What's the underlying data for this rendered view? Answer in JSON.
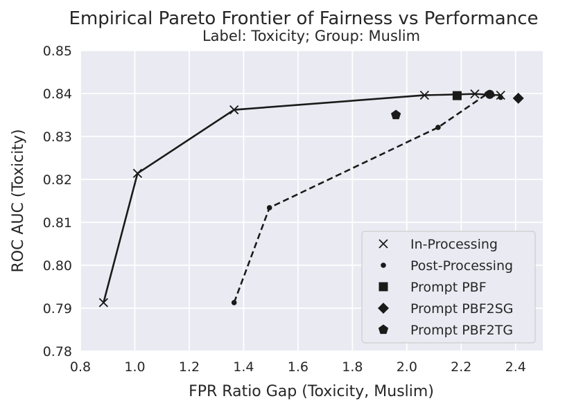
{
  "chart_data": {
    "type": "scatter",
    "title": "Empirical Pareto Frontier of Fairness vs Performance",
    "subtitle": "Label: Toxicity; Group: Muslim",
    "xlabel": "FPR Ratio Gap (Toxicity, Muslim)",
    "ylabel": "ROC AUC (Toxicity)",
    "xlim": [
      0.8,
      2.5
    ],
    "ylim": [
      0.78,
      0.85
    ],
    "xticks": [
      0.8,
      1.0,
      1.2,
      1.4,
      1.6,
      1.8,
      2.0,
      2.2,
      2.4
    ],
    "yticks": [
      0.78,
      0.79,
      0.8,
      0.81,
      0.82,
      0.83,
      0.84,
      0.85
    ],
    "xtick_labels": [
      "0.8",
      "1.0",
      "1.2",
      "1.4",
      "1.6",
      "1.8",
      "2.0",
      "2.2",
      "2.4"
    ],
    "ytick_labels": [
      "0.78",
      "0.79",
      "0.80",
      "0.81",
      "0.82",
      "0.83",
      "0.84",
      "0.85"
    ],
    "grid": true,
    "legend_position": "bottom-right",
    "colors": {
      "background": "#eaeaf2",
      "grid": "#ffffff",
      "mark": "#1a1a1a",
      "legend_bg": "#eaeaf2",
      "legend_border": "#cccccc"
    },
    "series": [
      {
        "name": "In-Processing",
        "marker": "x",
        "line": "solid",
        "points": [
          {
            "x": 0.885,
            "y": 0.7913
          },
          {
            "x": 1.01,
            "y": 0.8214
          },
          {
            "x": 1.365,
            "y": 0.8362
          },
          {
            "x": 2.065,
            "y": 0.8396
          },
          {
            "x": 2.25,
            "y": 0.8399
          },
          {
            "x": 2.345,
            "y": 0.8396
          }
        ]
      },
      {
        "name": "Post-Processing",
        "marker": "dot",
        "line": "dashed",
        "points": [
          {
            "x": 1.365,
            "y": 0.7913
          },
          {
            "x": 1.495,
            "y": 0.8134
          },
          {
            "x": 2.115,
            "y": 0.8321
          },
          {
            "x": 2.295,
            "y": 0.8399
          },
          {
            "x": 2.345,
            "y": 0.8391
          }
        ]
      },
      {
        "name": "Prompt PBF",
        "marker": "square",
        "line": "none",
        "points": [
          {
            "x": 2.185,
            "y": 0.8395
          }
        ]
      },
      {
        "name": "Prompt PBF2SG",
        "marker": "diamond",
        "line": "none",
        "points": [
          {
            "x": 2.41,
            "y": 0.8389
          }
        ]
      },
      {
        "name": "Prompt PBF2TG",
        "marker": "pentagon",
        "line": "none",
        "points": [
          {
            "x": 1.96,
            "y": 0.835
          }
        ]
      }
    ],
    "extra_marks": [
      {
        "marker": "circle",
        "x": 2.305,
        "y": 0.8398
      }
    ]
  }
}
